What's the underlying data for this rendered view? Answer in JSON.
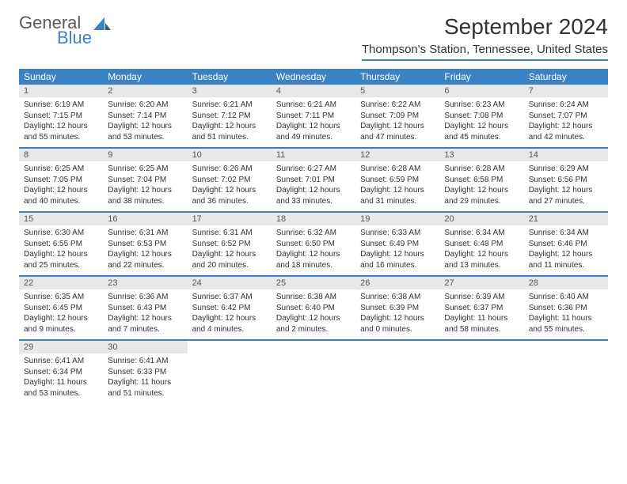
{
  "logo": {
    "main": "General",
    "accent": "Blue"
  },
  "title": "September 2024",
  "location": "Thompson's Station, Tennessee, United States",
  "colors": {
    "header_bg": "#3b82c4",
    "header_fg": "#ffffff",
    "daynum_bg": "#e8e8e8",
    "rule": "#3b82c4",
    "text": "#333333"
  },
  "day_names": [
    "Sunday",
    "Monday",
    "Tuesday",
    "Wednesday",
    "Thursday",
    "Friday",
    "Saturday"
  ],
  "weeks": [
    [
      {
        "n": "1",
        "sr": "Sunrise: 6:19 AM",
        "ss": "Sunset: 7:15 PM",
        "d1": "Daylight: 12 hours",
        "d2": "and 55 minutes."
      },
      {
        "n": "2",
        "sr": "Sunrise: 6:20 AM",
        "ss": "Sunset: 7:14 PM",
        "d1": "Daylight: 12 hours",
        "d2": "and 53 minutes."
      },
      {
        "n": "3",
        "sr": "Sunrise: 6:21 AM",
        "ss": "Sunset: 7:12 PM",
        "d1": "Daylight: 12 hours",
        "d2": "and 51 minutes."
      },
      {
        "n": "4",
        "sr": "Sunrise: 6:21 AM",
        "ss": "Sunset: 7:11 PM",
        "d1": "Daylight: 12 hours",
        "d2": "and 49 minutes."
      },
      {
        "n": "5",
        "sr": "Sunrise: 6:22 AM",
        "ss": "Sunset: 7:09 PM",
        "d1": "Daylight: 12 hours",
        "d2": "and 47 minutes."
      },
      {
        "n": "6",
        "sr": "Sunrise: 6:23 AM",
        "ss": "Sunset: 7:08 PM",
        "d1": "Daylight: 12 hours",
        "d2": "and 45 minutes."
      },
      {
        "n": "7",
        "sr": "Sunrise: 6:24 AM",
        "ss": "Sunset: 7:07 PM",
        "d1": "Daylight: 12 hours",
        "d2": "and 42 minutes."
      }
    ],
    [
      {
        "n": "8",
        "sr": "Sunrise: 6:25 AM",
        "ss": "Sunset: 7:05 PM",
        "d1": "Daylight: 12 hours",
        "d2": "and 40 minutes."
      },
      {
        "n": "9",
        "sr": "Sunrise: 6:25 AM",
        "ss": "Sunset: 7:04 PM",
        "d1": "Daylight: 12 hours",
        "d2": "and 38 minutes."
      },
      {
        "n": "10",
        "sr": "Sunrise: 6:26 AM",
        "ss": "Sunset: 7:02 PM",
        "d1": "Daylight: 12 hours",
        "d2": "and 36 minutes."
      },
      {
        "n": "11",
        "sr": "Sunrise: 6:27 AM",
        "ss": "Sunset: 7:01 PM",
        "d1": "Daylight: 12 hours",
        "d2": "and 33 minutes."
      },
      {
        "n": "12",
        "sr": "Sunrise: 6:28 AM",
        "ss": "Sunset: 6:59 PM",
        "d1": "Daylight: 12 hours",
        "d2": "and 31 minutes."
      },
      {
        "n": "13",
        "sr": "Sunrise: 6:28 AM",
        "ss": "Sunset: 6:58 PM",
        "d1": "Daylight: 12 hours",
        "d2": "and 29 minutes."
      },
      {
        "n": "14",
        "sr": "Sunrise: 6:29 AM",
        "ss": "Sunset: 6:56 PM",
        "d1": "Daylight: 12 hours",
        "d2": "and 27 minutes."
      }
    ],
    [
      {
        "n": "15",
        "sr": "Sunrise: 6:30 AM",
        "ss": "Sunset: 6:55 PM",
        "d1": "Daylight: 12 hours",
        "d2": "and 25 minutes."
      },
      {
        "n": "16",
        "sr": "Sunrise: 6:31 AM",
        "ss": "Sunset: 6:53 PM",
        "d1": "Daylight: 12 hours",
        "d2": "and 22 minutes."
      },
      {
        "n": "17",
        "sr": "Sunrise: 6:31 AM",
        "ss": "Sunset: 6:52 PM",
        "d1": "Daylight: 12 hours",
        "d2": "and 20 minutes."
      },
      {
        "n": "18",
        "sr": "Sunrise: 6:32 AM",
        "ss": "Sunset: 6:50 PM",
        "d1": "Daylight: 12 hours",
        "d2": "and 18 minutes."
      },
      {
        "n": "19",
        "sr": "Sunrise: 6:33 AM",
        "ss": "Sunset: 6:49 PM",
        "d1": "Daylight: 12 hours",
        "d2": "and 16 minutes."
      },
      {
        "n": "20",
        "sr": "Sunrise: 6:34 AM",
        "ss": "Sunset: 6:48 PM",
        "d1": "Daylight: 12 hours",
        "d2": "and 13 minutes."
      },
      {
        "n": "21",
        "sr": "Sunrise: 6:34 AM",
        "ss": "Sunset: 6:46 PM",
        "d1": "Daylight: 12 hours",
        "d2": "and 11 minutes."
      }
    ],
    [
      {
        "n": "22",
        "sr": "Sunrise: 6:35 AM",
        "ss": "Sunset: 6:45 PM",
        "d1": "Daylight: 12 hours",
        "d2": "and 9 minutes."
      },
      {
        "n": "23",
        "sr": "Sunrise: 6:36 AM",
        "ss": "Sunset: 6:43 PM",
        "d1": "Daylight: 12 hours",
        "d2": "and 7 minutes."
      },
      {
        "n": "24",
        "sr": "Sunrise: 6:37 AM",
        "ss": "Sunset: 6:42 PM",
        "d1": "Daylight: 12 hours",
        "d2": "and 4 minutes."
      },
      {
        "n": "25",
        "sr": "Sunrise: 6:38 AM",
        "ss": "Sunset: 6:40 PM",
        "d1": "Daylight: 12 hours",
        "d2": "and 2 minutes."
      },
      {
        "n": "26",
        "sr": "Sunrise: 6:38 AM",
        "ss": "Sunset: 6:39 PM",
        "d1": "Daylight: 12 hours",
        "d2": "and 0 minutes."
      },
      {
        "n": "27",
        "sr": "Sunrise: 6:39 AM",
        "ss": "Sunset: 6:37 PM",
        "d1": "Daylight: 11 hours",
        "d2": "and 58 minutes."
      },
      {
        "n": "28",
        "sr": "Sunrise: 6:40 AM",
        "ss": "Sunset: 6:36 PM",
        "d1": "Daylight: 11 hours",
        "d2": "and 55 minutes."
      }
    ],
    [
      {
        "n": "29",
        "sr": "Sunrise: 6:41 AM",
        "ss": "Sunset: 6:34 PM",
        "d1": "Daylight: 11 hours",
        "d2": "and 53 minutes."
      },
      {
        "n": "30",
        "sr": "Sunrise: 6:41 AM",
        "ss": "Sunset: 6:33 PM",
        "d1": "Daylight: 11 hours",
        "d2": "and 51 minutes."
      },
      null,
      null,
      null,
      null,
      null
    ]
  ]
}
